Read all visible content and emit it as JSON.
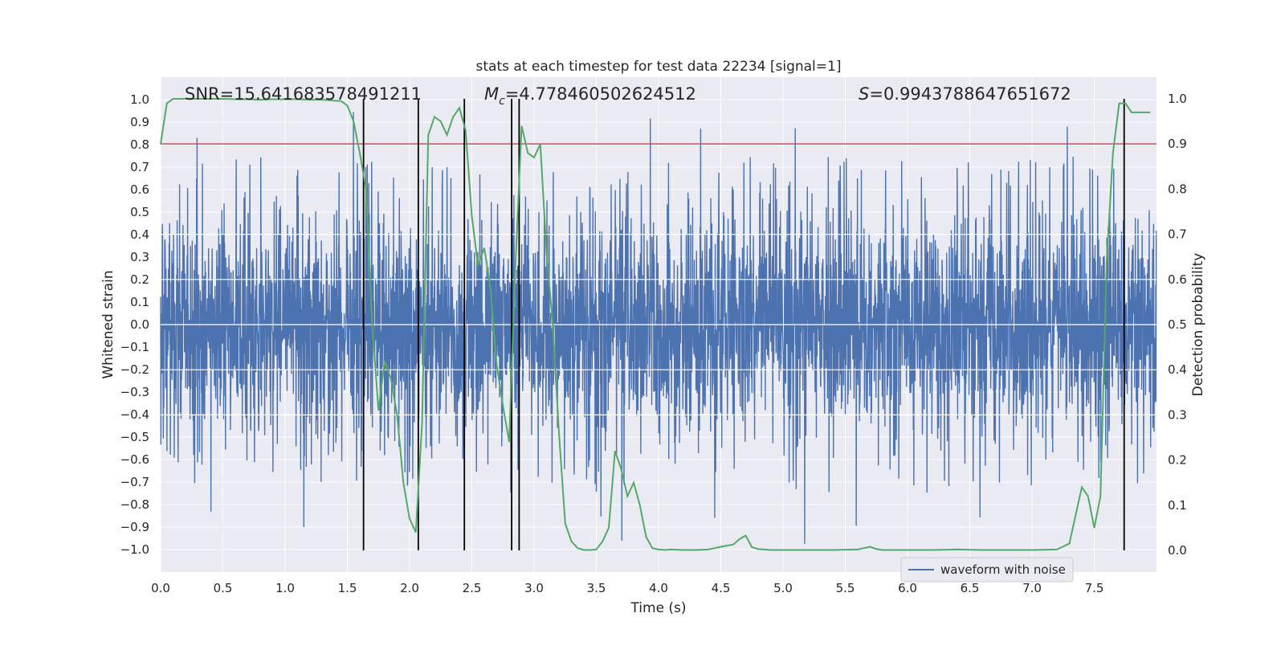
{
  "chart_data": {
    "type": "line",
    "title": "stats at each timestep for test data 22234 [signal=1]",
    "xlabel": "Time (s)",
    "ylabel": "Whitened strain",
    "y2label": "Detection probability",
    "xlim": [
      0.0,
      8.0
    ],
    "ylim": [
      -1.1,
      1.1
    ],
    "y2lim": [
      -0.048,
      1.048
    ],
    "xticks": [
      "0.0",
      "0.5",
      "1.0",
      "1.5",
      "2.0",
      "2.5",
      "3.0",
      "3.5",
      "4.0",
      "4.5",
      "5.0",
      "5.5",
      "6.0",
      "6.5",
      "7.0",
      "7.5"
    ],
    "yticks": [
      "1.0",
      "0.9",
      "0.8",
      "0.7",
      "0.6",
      "0.5",
      "0.4",
      "0.3",
      "0.2",
      "0.1",
      "0.0",
      "-0.1",
      "-0.2",
      "-0.3",
      "-0.4",
      "-0.5",
      "-0.6",
      "-0.7",
      "-0.8",
      "-0.9",
      "-1.0"
    ],
    "y2ticks": [
      "1.0",
      "0.9",
      "0.8",
      "0.7",
      "0.6",
      "0.5",
      "0.4",
      "0.3",
      "0.2",
      "0.1",
      "0.0"
    ],
    "annotations": {
      "snr": "SNR=15.641683578491211",
      "mc_symbol": "M",
      "mc_sub": "c",
      "mc_value": "=4.778460502624512",
      "s_symbol": "S",
      "s_value": "=0.9943788647651672"
    },
    "legend": {
      "label": "waveform with noise",
      "location": "lower-right"
    },
    "waveform": {
      "name": "waveform with noise",
      "color": "#4c72b0",
      "sample_rate": 512,
      "band_half_width": 0.36,
      "typical_peak": 0.6,
      "max_abs": 1.0
    },
    "threshold": {
      "value": 0.9,
      "color": "#c44e52"
    },
    "event_lines_x": [
      1.63,
      2.07,
      2.44,
      2.82,
      2.88,
      7.74
    ],
    "event_lines_ylim": [
      0.0,
      1.0
    ],
    "probability": {
      "name": "detection probability",
      "color": "#55a868",
      "x": [
        0.0,
        0.05,
        0.1,
        0.2,
        0.3,
        0.4,
        0.5,
        0.6,
        0.7,
        0.8,
        0.9,
        1.0,
        1.1,
        1.2,
        1.3,
        1.4,
        1.45,
        1.5,
        1.55,
        1.6,
        1.65,
        1.7,
        1.75,
        1.8,
        1.85,
        1.9,
        1.95,
        2.0,
        2.05,
        2.1,
        2.15,
        2.2,
        2.25,
        2.3,
        2.35,
        2.4,
        2.45,
        2.5,
        2.55,
        2.6,
        2.65,
        2.7,
        2.75,
        2.8,
        2.85,
        2.9,
        2.95,
        3.0,
        3.05,
        3.1,
        3.15,
        3.2,
        3.25,
        3.3,
        3.35,
        3.4,
        3.45,
        3.5,
        3.55,
        3.6,
        3.65,
        3.7,
        3.75,
        3.8,
        3.85,
        3.9,
        3.95,
        4.0,
        4.05,
        4.1,
        4.2,
        4.3,
        4.4,
        4.5,
        4.6,
        4.65,
        4.7,
        4.75,
        4.8,
        4.85,
        4.9,
        5.0,
        5.2,
        5.4,
        5.6,
        5.7,
        5.75,
        5.8,
        5.9,
        6.0,
        6.2,
        6.4,
        6.6,
        6.8,
        7.0,
        7.2,
        7.3,
        7.4,
        7.45,
        7.5,
        7.55,
        7.6,
        7.65,
        7.7,
        7.75,
        7.8,
        7.85,
        7.9,
        7.95
      ],
      "y": [
        0.9,
        0.99,
        1.0,
        1.0,
        1.0,
        1.0,
        1.0,
        0.999,
        0.999,
        0.998,
        0.999,
        0.999,
        0.999,
        0.998,
        0.998,
        0.996,
        0.995,
        0.985,
        0.95,
        0.88,
        0.8,
        0.5,
        0.31,
        0.42,
        0.38,
        0.3,
        0.15,
        0.07,
        0.04,
        0.28,
        0.92,
        0.96,
        0.95,
        0.92,
        0.96,
        0.98,
        0.93,
        0.74,
        0.63,
        0.67,
        0.58,
        0.41,
        0.32,
        0.24,
        0.63,
        0.94,
        0.88,
        0.87,
        0.9,
        0.66,
        0.5,
        0.26,
        0.06,
        0.02,
        0.005,
        0.001,
        0.001,
        0.002,
        0.02,
        0.05,
        0.22,
        0.18,
        0.12,
        0.15,
        0.1,
        0.03,
        0.005,
        0.002,
        0.001,
        0.002,
        0.001,
        0.001,
        0.002,
        0.008,
        0.013,
        0.025,
        0.033,
        0.007,
        0.003,
        0.002,
        0.001,
        0.001,
        0.001,
        0.001,
        0.002,
        0.008,
        0.003,
        0.001,
        0.001,
        0.001,
        0.001,
        0.002,
        0.001,
        0.001,
        0.001,
        0.002,
        0.015,
        0.14,
        0.12,
        0.05,
        0.12,
        0.64,
        0.88,
        0.99,
        0.99,
        0.97,
        0.97,
        0.97,
        0.97
      ]
    }
  }
}
